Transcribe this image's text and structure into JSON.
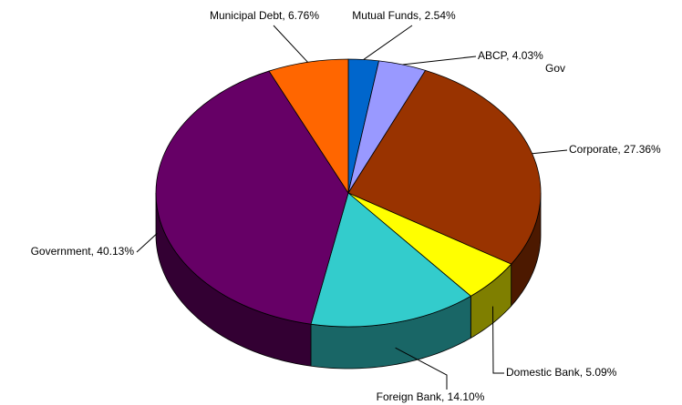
{
  "chart_data": {
    "type": "pie",
    "title": "Gov",
    "values": [
      2.54,
      4.03,
      27.36,
      5.09,
      14.1,
      40.13,
      6.76
    ],
    "value_labels": [
      "Mutual Funds, 2.54%",
      "ABCP, 4.03%",
      "Corporate, 27.36%",
      "Domestic Bank, 5.09%",
      "Foreign Bank, 14.10%",
      "Government, 40.13%",
      "Municipal Debt, 6.76%"
    ],
    "colors": [
      "#0066cc",
      "#9999ff",
      "#993300",
      "#ffff00",
      "#33cccc",
      "#660066",
      "#ff6600"
    ],
    "start_angle": 0
  }
}
